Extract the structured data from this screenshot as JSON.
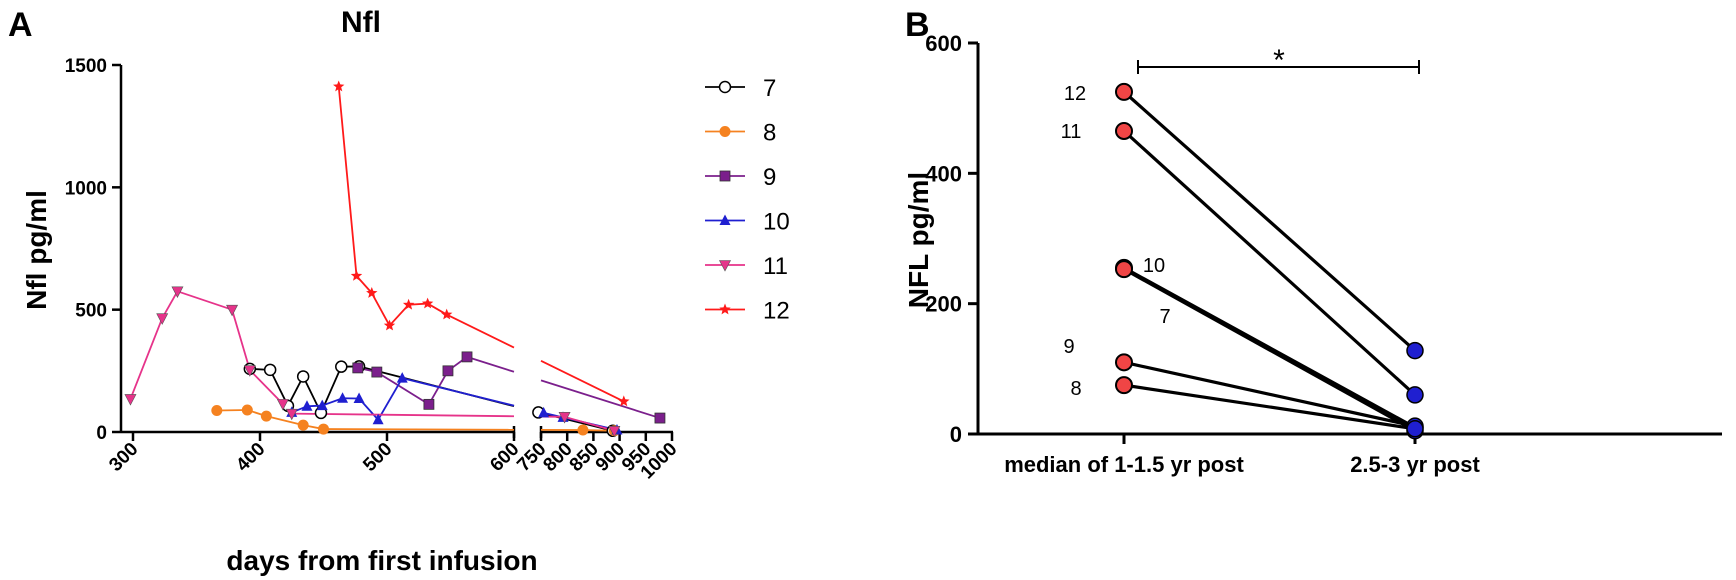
{
  "chart_data": [
    {
      "panel": "A",
      "type": "line",
      "title": "Nfl",
      "xlabel": "days from first infusion",
      "ylabel": "Nfl pg/ml",
      "ylim": [
        0,
        1500
      ],
      "yticks": [
        "0",
        "500",
        "1000",
        "1500"
      ],
      "x_axis_break": true,
      "xlim_segments": [
        [
          300,
          600
        ],
        [
          750,
          1000
        ]
      ],
      "xticks_left": [
        "300",
        "400",
        "500",
        "600"
      ],
      "xticks_right": [
        "750",
        "800",
        "850",
        "900",
        "950",
        "1000"
      ],
      "legend_position": "right",
      "series": [
        {
          "name": "7",
          "color": "#000000",
          "marker": "circle-open",
          "x": [
            392,
            408,
            422,
            434,
            448,
            464,
            478,
            745,
            887
          ],
          "y": [
            258,
            254,
            107,
            227,
            78,
            267,
            268,
            80,
            5
          ]
        },
        {
          "name": "8",
          "color": "#f58220",
          "marker": "circle",
          "x": [
            366,
            390,
            405,
            434,
            450,
            830,
            890
          ],
          "y": [
            88,
            90,
            65,
            28,
            12,
            8,
            5
          ]
        },
        {
          "name": "9",
          "color": "#7b1f8c",
          "marker": "square",
          "x": [
            477,
            492,
            533,
            548,
            563,
            977
          ],
          "y": [
            262,
            245,
            113,
            250,
            307,
            57
          ]
        },
        {
          "name": "10",
          "color": "#1f1fd0",
          "marker": "triangle-up",
          "x": [
            425,
            437,
            449,
            465,
            478,
            493,
            512,
            755,
            792,
            895
          ],
          "y": [
            80,
            105,
            108,
            138,
            137,
            50,
            220,
            78,
            60,
            8
          ]
        },
        {
          "name": "11",
          "color": "#e6338a",
          "marker": "triangle-down",
          "x": [
            298,
            323,
            335,
            378,
            392,
            418,
            425,
            795,
            890
          ],
          "y": [
            135,
            465,
            575,
            500,
            253,
            115,
            75,
            62,
            5
          ]
        },
        {
          "name": "12",
          "color": "#ff1a1a",
          "marker": "star",
          "x": [
            462,
            476,
            488,
            502,
            517,
            532,
            547,
            908
          ],
          "y": [
            1412,
            638,
            568,
            435,
            520,
            525,
            480,
            125
          ]
        }
      ]
    },
    {
      "panel": "B",
      "type": "scatter",
      "ylabel": "NFL pg/ml",
      "ylim": [
        0,
        600
      ],
      "yticks": [
        "0",
        "200",
        "400",
        "600"
      ],
      "categories": [
        "median of 1-1.5 yr post",
        "2.5-3 yr post"
      ],
      "significance": "*",
      "group_colors": [
        "#f04545",
        "#1f1fd0"
      ],
      "pairs": [
        {
          "label": "12",
          "values": [
            525,
            128
          ]
        },
        {
          "label": "11",
          "values": [
            465,
            60
          ]
        },
        {
          "label": "10",
          "values": [
            255,
            10
          ]
        },
        {
          "label": "7",
          "values": [
            253,
            5
          ]
        },
        {
          "label": "9",
          "values": [
            110,
            12
          ]
        },
        {
          "label": "8",
          "values": [
            75,
            8
          ]
        }
      ]
    }
  ]
}
